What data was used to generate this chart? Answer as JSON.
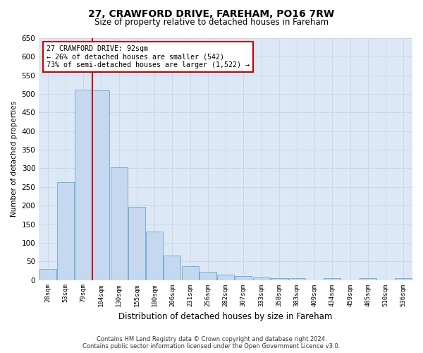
{
  "title_line1": "27, CRAWFORD DRIVE, FAREHAM, PO16 7RW",
  "title_line2": "Size of property relative to detached houses in Fareham",
  "xlabel": "Distribution of detached houses by size in Fareham",
  "ylabel": "Number of detached properties",
  "categories": [
    "28sqm",
    "53sqm",
    "79sqm",
    "104sqm",
    "130sqm",
    "155sqm",
    "180sqm",
    "206sqm",
    "231sqm",
    "256sqm",
    "282sqm",
    "307sqm",
    "333sqm",
    "358sqm",
    "383sqm",
    "409sqm",
    "434sqm",
    "459sqm",
    "485sqm",
    "510sqm",
    "536sqm"
  ],
  "values": [
    30,
    263,
    512,
    510,
    302,
    197,
    130,
    65,
    37,
    22,
    15,
    10,
    6,
    4,
    4,
    0,
    4,
    0,
    4,
    0,
    4
  ],
  "bar_color": "#c5d8f0",
  "bar_edge_color": "#7bafd4",
  "marker_label": "27 CRAWFORD DRIVE: 92sqm",
  "marker_sublabel1": "← 26% of detached houses are smaller (542)",
  "marker_sublabel2": "73% of semi-detached houses are larger (1,522) →",
  "annotation_box_color": "#ffffff",
  "annotation_box_edge": "#cc0000",
  "vline_color": "#cc0000",
  "ylim": [
    0,
    650
  ],
  "yticks": [
    0,
    50,
    100,
    150,
    200,
    250,
    300,
    350,
    400,
    450,
    500,
    550,
    600,
    650
  ],
  "grid_color": "#ccd8e8",
  "background_color": "#dce8f5",
  "footer1": "Contains HM Land Registry data © Crown copyright and database right 2024.",
  "footer2": "Contains public sector information licensed under the Open Government Licence v3.0."
}
